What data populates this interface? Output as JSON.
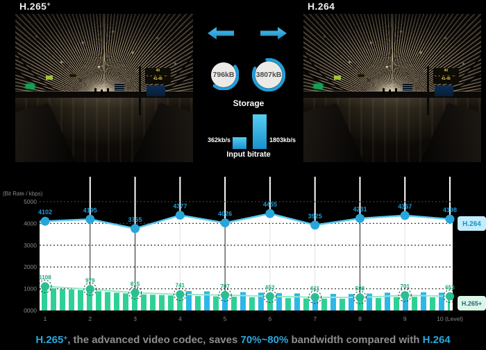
{
  "panels": {
    "left": {
      "base": "H.265",
      "sup": "+"
    },
    "right": {
      "base": "H.264"
    }
  },
  "scene": {
    "gate_top": "40",
    "gate_range": "41-45"
  },
  "icons": {
    "left_arrow": "arrow-left-icon",
    "right_arrow": "arrow-right-icon"
  },
  "comparison": {
    "storage": {
      "label": "Storage",
      "h265plus": "796kB",
      "h264": "3807kB"
    },
    "input_bitrate": {
      "label": "Input bitrate",
      "h265plus": "362kb/s",
      "h264": "1803kb/s"
    }
  },
  "chart_data": {
    "type": "line",
    "title": "(Bit Rate / kbps)",
    "xlabel": "Level",
    "x": [
      1,
      2,
      3,
      4,
      5,
      6,
      7,
      8,
      9,
      10
    ],
    "xtick_labels": [
      "1",
      "2",
      "3",
      "4",
      "5",
      "6",
      "7",
      "8",
      "9",
      "10 (Level)"
    ],
    "ylim": [
      0,
      5000
    ],
    "yticks": [
      5000,
      4000,
      3000,
      2000,
      1000,
      0
    ],
    "ytick_labels": [
      "5000",
      "4000",
      "3000",
      "2000",
      "1000",
      "0000"
    ],
    "grid": "dotted-horizontal",
    "legend_position": "right",
    "series": [
      {
        "name": "H.264",
        "color": "#29abe2",
        "style": "line-markers",
        "values": [
          4102,
          4195,
          3765,
          4377,
          4026,
          4455,
          3925,
          4231,
          4367,
          4198
        ]
      },
      {
        "name": "H.265+",
        "color": "#2ecc93",
        "style": "line-markers-striped-area",
        "values": [
          1108,
          979,
          815,
          741,
          707,
          652,
          611,
          598,
          701,
          653
        ]
      }
    ]
  },
  "colors": {
    "accent_blue": "#29abe2",
    "green": "#2ecc93",
    "legend_h264_bg": "#c3ebf9",
    "legend_h265_bg": "#daf6e9",
    "caption_gray": "#8e8e8e"
  },
  "caption": {
    "lead": "H.265",
    "lead_sup": "+",
    "mid1": ", the advanced video codec, saves ",
    "highlight": "70%~80%",
    "mid2": " bandwidth compared with ",
    "tail": "H.264"
  }
}
